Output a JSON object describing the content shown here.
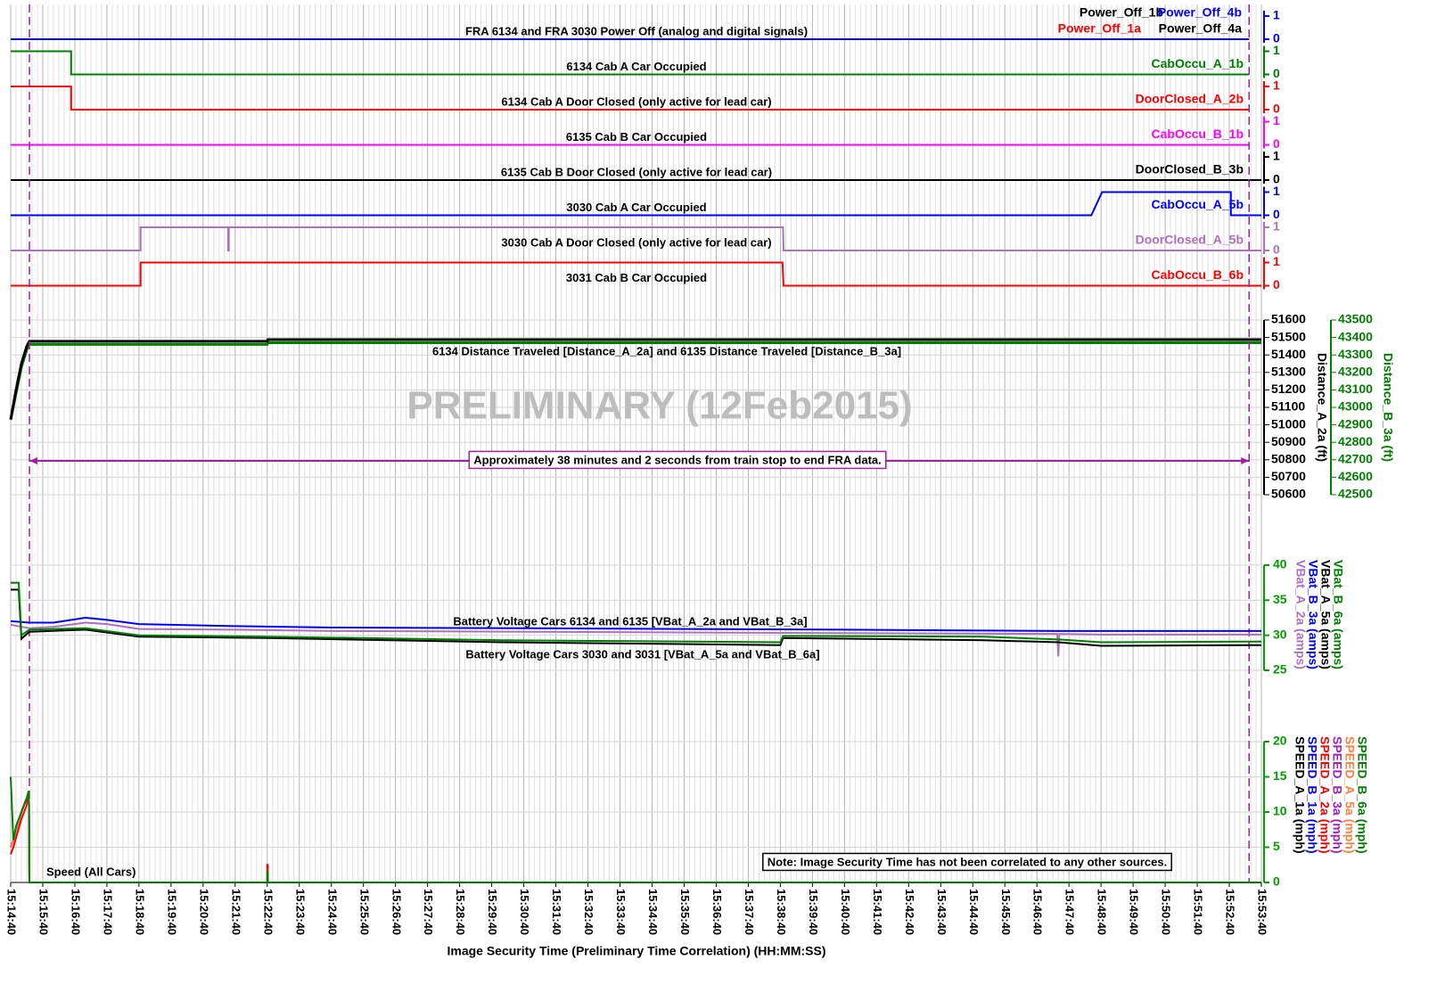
{
  "chart_data": [
    {
      "type": "digital",
      "rows": [
        {
          "label": "FRA 6134 and FRA 3030 Power Off (analog and digital signals)",
          "color": "#0000ff",
          "yticks": [
            0,
            1
          ],
          "series": [
            {
              "name": "Power_Off_1b",
              "color": "#000000",
              "x": [
                "15:14:40",
                "15:53:17"
              ],
              "values": [
                0,
                0
              ]
            },
            {
              "name": "Power_Off_1a",
              "color": "#ff0000",
              "x": [
                "15:14:40",
                "15:53:17"
              ],
              "values": [
                0,
                0
              ]
            },
            {
              "name": "Power_Off_4a",
              "color": "#000000",
              "x": [
                "15:14:40",
                "15:53:17"
              ],
              "values": [
                0,
                0
              ]
            },
            {
              "name": "Power_Off_4b",
              "color": "#0000ff",
              "x": [
                "15:14:40",
                "15:53:17"
              ],
              "values": [
                0,
                0
              ]
            }
          ]
        },
        {
          "label": "6134 Cab A Car Occupied",
          "color": "#008000",
          "yticks": [
            0,
            1
          ],
          "series": [
            {
              "name": "CabOccu_A_1b",
              "color": "#008000",
              "x": [
                "15:14:40",
                "15:16:33",
                "15:16:33",
                "15:53:17"
              ],
              "values": [
                1,
                1,
                0,
                0
              ]
            }
          ]
        },
        {
          "label": "6134 Cab A Door Closed (only active for lead car)",
          "color": "#ff0000",
          "yticks": [
            0,
            1
          ],
          "series": [
            {
              "name": "DoorClosed_A_2b",
              "color": "#ff0000",
              "x": [
                "15:14:40",
                "15:16:33",
                "15:16:33",
                "15:53:17"
              ],
              "values": [
                1,
                1,
                0,
                0
              ]
            }
          ]
        },
        {
          "label": "6135 Cab B Car Occupied",
          "color": "#ff00ff",
          "yticks": [
            0,
            1
          ],
          "series": [
            {
              "name": "CabOccu_B_1b",
              "color": "#ff00ff",
              "x": [
                "15:14:40",
                "15:53:17"
              ],
              "values": [
                0,
                0
              ]
            }
          ]
        },
        {
          "label": "6135 Cab B Door Closed (only active for lead car)",
          "color": "#000000",
          "yticks": [
            0,
            1
          ],
          "series": [
            {
              "name": "DoorClosed_B_3b",
              "color": "#000000",
              "x": [
                "15:14:40",
                "15:53:40"
              ],
              "values": [
                0,
                0
              ]
            }
          ]
        },
        {
          "label": "3030 Cab A Car Occupied",
          "color": "#0000ff",
          "yticks": [
            0,
            1
          ],
          "series": [
            {
              "name": "CabOccu_A_5b",
              "color": "#0000ff",
              "x": [
                "15:14:40",
                "15:48:22",
                "15:48:42",
                "15:52:43",
                "15:52:43",
                "15:53:40"
              ],
              "values": [
                0,
                0,
                1,
                1,
                0,
                0
              ]
            }
          ]
        },
        {
          "label": "3030 Cab A Door Closed (only active for lead car)",
          "color": "#b070c0",
          "yticks": [
            0,
            1
          ],
          "series": [
            {
              "name": "DoorClosed_A_5b",
              "color": "#b070c0",
              "x": [
                "15:14:40",
                "15:18:43",
                "15:18:43",
                "15:21:27",
                "15:21:27",
                "15:21:28",
                "15:21:28",
                "15:38:45",
                "15:38:46",
                "15:53:40"
              ],
              "values": [
                0,
                0,
                1,
                1,
                0,
                0,
                1,
                1,
                0,
                0
              ]
            }
          ]
        },
        {
          "label": "3031 Cab B Car Occupied",
          "color": "#ff0000",
          "yticks": [
            0,
            1
          ],
          "series": [
            {
              "name": "CabOccu_B_6b",
              "color": "#ff0000",
              "x": [
                "15:14:40",
                "15:18:43",
                "15:18:43",
                "15:38:44",
                "15:38:46",
                "15:53:40"
              ],
              "values": [
                0,
                0,
                1,
                1,
                0,
                0
              ]
            }
          ]
        }
      ]
    },
    {
      "type": "line",
      "annotation": "6134 Distance Traveled [Distance_A_2a] and 6135 Distance Traveled [Distance_B_3a]",
      "watermark": "PRELIMINARY (12Feb2015)",
      "span": {
        "x": [
          "15:15:15",
          "15:53:17"
        ],
        "label": "Approximately 38 minutes and 2 seconds from train stop to end FRA data."
      },
      "ylabel": "Distance_A_2a (ft)",
      "y2label": "Distance_B_3a (ft)",
      "ylim": [
        50600,
        51600
      ],
      "yticks": [
        50600,
        50700,
        50800,
        50900,
        51000,
        51100,
        51200,
        51300,
        51400,
        51500,
        51600
      ],
      "y2lim": [
        42500,
        43500
      ],
      "y2ticks": [
        42500,
        42600,
        42700,
        42800,
        42900,
        43000,
        43100,
        43200,
        43300,
        43400,
        43500
      ],
      "series": [
        {
          "name": "Distance_B_3a",
          "color": "#008000",
          "axis": "y2",
          "x": [
            "15:14:40",
            "15:14:50",
            "15:15:00",
            "15:15:10",
            "15:15:15",
            "15:22:40",
            "15:22:41",
            "15:53:40"
          ],
          "values": [
            42930,
            43080,
            43230,
            43330,
            43360,
            43360,
            43370,
            43370
          ]
        },
        {
          "name": "Distance_A_2a",
          "color": "#000000",
          "x": [
            "15:14:40",
            "15:14:50",
            "15:15:00",
            "15:15:10",
            "15:15:15",
            "15:22:40",
            "15:22:41",
            "15:53:40"
          ],
          "values": [
            51030,
            51200,
            51350,
            51450,
            51478,
            51478,
            51488,
            51488
          ]
        }
      ]
    },
    {
      "type": "line",
      "annotations": [
        "Battery Voltage Cars 6134 and 6135 [VBat_A_2a and VBat_B_3a]",
        "Battery Voltage Cars 3030 and 3031 [VBat_A_5a and VBat_B_6a]"
      ],
      "ylim": [
        25,
        40
      ],
      "yticks": [
        25,
        30,
        35,
        40
      ],
      "series": [
        {
          "name": "VBat_A_2a (amps)",
          "color": "#b070c0",
          "x": [
            "15:14:40",
            "15:15:15",
            "15:16:00",
            "15:17:00",
            "15:17:40",
            "15:18:40",
            "15:21:40",
            "15:24:40",
            "15:30:40",
            "15:40:40",
            "15:47:18",
            "15:47:20",
            "15:47:22",
            "15:48:40",
            "15:53:40"
          ],
          "values": [
            31.5,
            31.0,
            31.2,
            31.8,
            31.6,
            30.9,
            30.8,
            30.6,
            30.5,
            30.3,
            30.2,
            27.0,
            30.2,
            30.1,
            30.1
          ]
        },
        {
          "name": "VBat_B_3a (amps)",
          "color": "#0000ff",
          "x": [
            "15:14:40",
            "15:15:15",
            "15:16:00",
            "15:17:00",
            "15:17:40",
            "15:18:40",
            "15:21:40",
            "15:24:40",
            "15:30:40",
            "15:40:40",
            "15:47:20",
            "15:48:40",
            "15:53:40"
          ],
          "values": [
            32.0,
            31.8,
            31.8,
            32.5,
            32.2,
            31.6,
            31.3,
            31.1,
            31.0,
            30.8,
            30.6,
            30.6,
            30.6
          ]
        },
        {
          "name": "VBat_A_5a (amps)",
          "color": "#000000",
          "x": [
            "15:14:40",
            "15:14:55",
            "15:15:00",
            "15:15:15",
            "15:17:00",
            "15:18:40",
            "15:22:40",
            "15:30:00",
            "15:38:40",
            "15:38:45",
            "15:45:00",
            "15:47:20",
            "15:48:40",
            "15:53:40"
          ],
          "values": [
            36.5,
            36.5,
            29.5,
            30.5,
            30.8,
            29.8,
            29.6,
            29.0,
            28.6,
            29.6,
            29.3,
            29.0,
            28.5,
            28.6
          ]
        },
        {
          "name": "VBat_B_6a (amps)",
          "color": "#008000",
          "x": [
            "15:14:40",
            "15:14:55",
            "15:15:00",
            "15:15:15",
            "15:17:00",
            "15:18:40",
            "15:22:40",
            "15:30:00",
            "15:38:40",
            "15:38:45",
            "15:45:00",
            "15:47:20",
            "15:48:40",
            "15:53:40"
          ],
          "values": [
            37.5,
            37.5,
            30.0,
            30.8,
            31.0,
            30.0,
            29.8,
            29.3,
            29.0,
            29.9,
            29.8,
            29.4,
            29.0,
            29.1
          ]
        }
      ]
    },
    {
      "type": "line",
      "annotation": "Speed (All Cars)",
      "note": "Note: Image Security Time has not been correlated to any other sources.",
      "xlabel": "Image Security Time (Preliminary Time Correlation) (HH:MM:SS)",
      "xlim": [
        "15:14:40",
        "15:53:40"
      ],
      "xticks": [
        "15:14:40",
        "15:15:40",
        "15:16:40",
        "15:17:40",
        "15:18:40",
        "15:19:40",
        "15:20:40",
        "15:21:40",
        "15:22:40",
        "15:23:40",
        "15:24:40",
        "15:25:40",
        "15:26:40",
        "15:27:40",
        "15:28:40",
        "15:29:40",
        "15:30:40",
        "15:31:40",
        "15:32:40",
        "15:33:40",
        "15:34:40",
        "15:35:40",
        "15:36:40",
        "15:37:40",
        "15:38:40",
        "15:39:40",
        "15:40:40",
        "15:41:40",
        "15:42:40",
        "15:43:40",
        "15:44:40",
        "15:45:40",
        "15:46:40",
        "15:47:40",
        "15:48:40",
        "15:49:40",
        "15:50:40",
        "15:51:40",
        "15:52:40",
        "15:53:40"
      ],
      "ylim": [
        0,
        20
      ],
      "yticks": [
        0,
        5,
        10,
        15,
        20
      ],
      "series": [
        {
          "name": "SPEED_A_1a (mph)",
          "color": "#000000",
          "x": [
            "15:14:40",
            "15:14:45",
            "15:15:00",
            "15:15:10",
            "15:15:14",
            "15:15:15",
            "15:53:40"
          ],
          "values": [
            5,
            6,
            10,
            12,
            13,
            0,
            0
          ]
        },
        {
          "name": "SPEED_B_1a (mph)",
          "color": "#0000ff",
          "x": [
            "15:14:40",
            "15:14:45",
            "15:15:00",
            "15:15:10",
            "15:15:14",
            "15:15:15",
            "15:53:40"
          ],
          "values": [
            5,
            6,
            10,
            12,
            13,
            0,
            0
          ]
        },
        {
          "name": "SPEED_A_2a (mph)",
          "color": "#ff0000",
          "x": [
            "15:14:40",
            "15:14:45",
            "15:15:00",
            "15:15:10",
            "15:15:14",
            "15:15:15",
            "15:22:40",
            "15:22:40",
            "15:22:41",
            "15:22:41",
            "15:53:40"
          ],
          "values": [
            4,
            5,
            9,
            11,
            13,
            0,
            0,
            2.5,
            2.5,
            0,
            0
          ]
        },
        {
          "name": "SPEED_B_3a (mph)",
          "color": "#a020c0",
          "x": [
            "15:14:40",
            "15:14:45",
            "15:15:00",
            "15:15:10",
            "15:15:14",
            "15:15:15",
            "15:53:40"
          ],
          "values": [
            5,
            6,
            10,
            12,
            13,
            0,
            0
          ]
        },
        {
          "name": "SPEED_A_5a (mph)",
          "color": "#ff8040",
          "x": [
            "15:14:40",
            "15:14:45",
            "15:15:00",
            "15:15:10",
            "15:15:14",
            "15:15:15",
            "15:53:40"
          ],
          "values": [
            5,
            6,
            10,
            12,
            13,
            0,
            0
          ]
        },
        {
          "name": "SPEED_B_6a (mph)",
          "color": "#008000",
          "x": [
            "15:14:40",
            "15:14:45",
            "15:14:50",
            "15:15:00",
            "15:15:10",
            "15:15:14",
            "15:15:15",
            "15:22:40",
            "15:22:40",
            "15:22:41",
            "15:22:41",
            "15:53:40"
          ],
          "values": [
            15,
            6,
            8,
            10,
            12,
            13,
            0,
            0,
            1.5,
            1.5,
            0,
            0
          ]
        }
      ]
    }
  ]
}
